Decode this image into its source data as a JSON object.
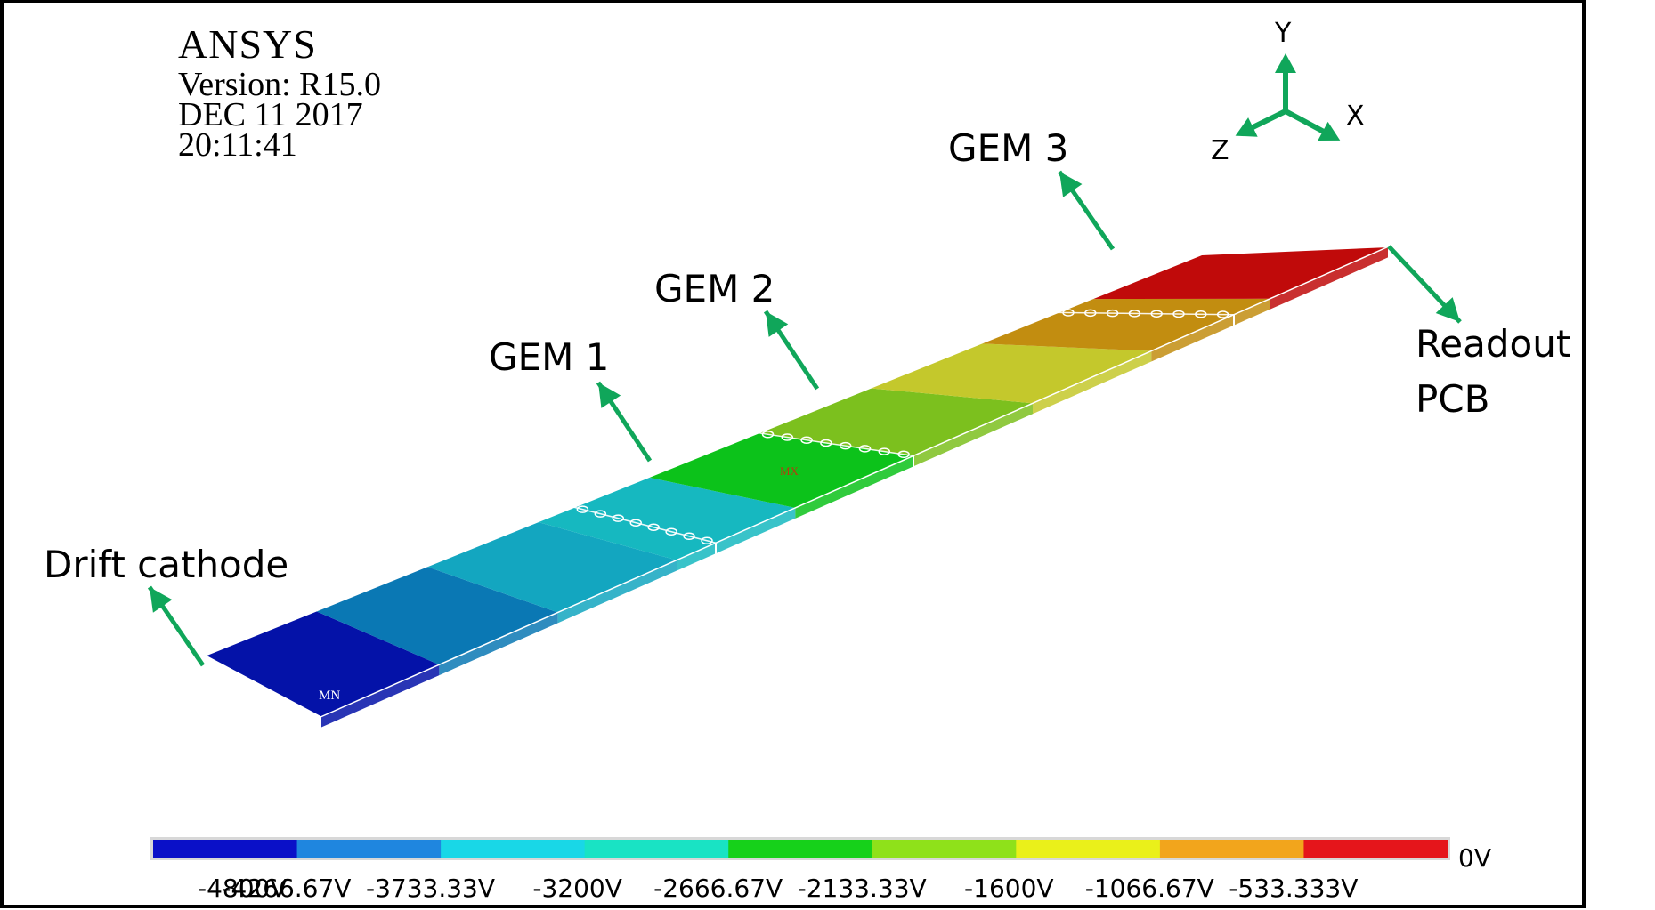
{
  "software": {
    "brand": "ANSYS",
    "version": "Version: R15.0",
    "date": "DEC  11  2017",
    "time": "20:11:41"
  },
  "labels": {
    "drift_cathode": "Drift cathode",
    "gem1": "GEM 1",
    "gem2": "GEM 2",
    "gem3": "GEM 3",
    "readout_line1": "Readout",
    "readout_line2": "PCB"
  },
  "triad": {
    "x": "X",
    "y": "Y",
    "z": "Z"
  },
  "model_marks": {
    "min": "MN",
    "max": "MX"
  },
  "legend": {
    "colors": [
      "#0a10c8",
      "#1f86df",
      "#19d7e7",
      "#19e3c4",
      "#16d11a",
      "#8fe11a",
      "#eaf01a",
      "#f2a51c",
      "#e5151b"
    ],
    "ticks": [
      "-4800V",
      "-4266.67V",
      "-3733.33V",
      "-3200V",
      "-2666.67V",
      "-2133.33V",
      "-1600V",
      "-1066.67V",
      "-533.333V",
      "0V"
    ]
  },
  "slab_colors": [
    "#0412a8",
    "#0a78b4",
    "#13a6c0",
    "#16b8c0",
    "#0cc21a",
    "#7cc01e",
    "#c4c82c",
    "#c28d10",
    "#c00a0a"
  ],
  "arrow_color": "#10a65a"
}
